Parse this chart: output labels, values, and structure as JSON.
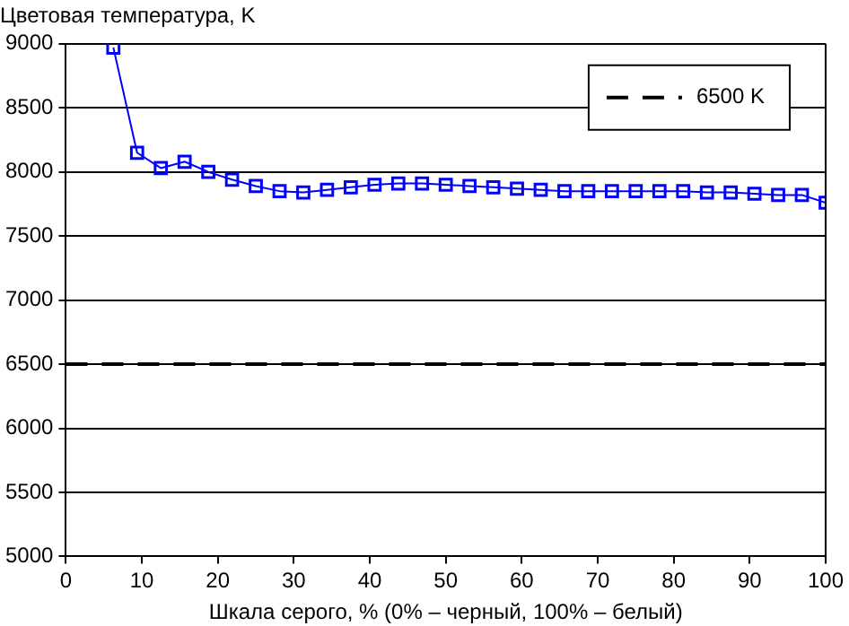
{
  "chart_data": {
    "type": "line",
    "ylabel": "Цветовая температура, K",
    "xlabel": "Шкала серого, % (0% – черный, 100% – белый)",
    "x": [
      6.25,
      9.375,
      12.5,
      15.625,
      18.75,
      21.875,
      25,
      28.125,
      31.25,
      34.375,
      37.5,
      40.625,
      43.75,
      46.875,
      50,
      53.125,
      56.25,
      59.375,
      62.5,
      65.625,
      68.75,
      71.875,
      75,
      78.125,
      81.25,
      84.375,
      87.5,
      90.625,
      93.75,
      96.875,
      100
    ],
    "series": [
      {
        "color": "#0000ff",
        "values": [
          8970,
          8150,
          8030,
          8080,
          8000,
          7940,
          7890,
          7850,
          7840,
          7860,
          7880,
          7900,
          7910,
          7910,
          7900,
          7890,
          7880,
          7870,
          7860,
          7850,
          7850,
          7850,
          7850,
          7850,
          7850,
          7840,
          7840,
          7830,
          7820,
          7820,
          7760
        ]
      }
    ],
    "xlim": [
      0,
      100
    ],
    "xticks": [
      0,
      10,
      20,
      30,
      40,
      50,
      60,
      70,
      80,
      90,
      100
    ],
    "ylim": [
      5000,
      9000
    ],
    "yticks": [
      5000,
      5500,
      6000,
      6500,
      7000,
      7500,
      8000,
      8500,
      9000
    ],
    "ref_lines": [
      {
        "axis": "y",
        "value": 6500,
        "label": "6500 K",
        "color": "#000000",
        "line_style": "dashed"
      }
    ],
    "grid": "y",
    "legend": "top right",
    "marker": "square",
    "line_style": "solid"
  }
}
